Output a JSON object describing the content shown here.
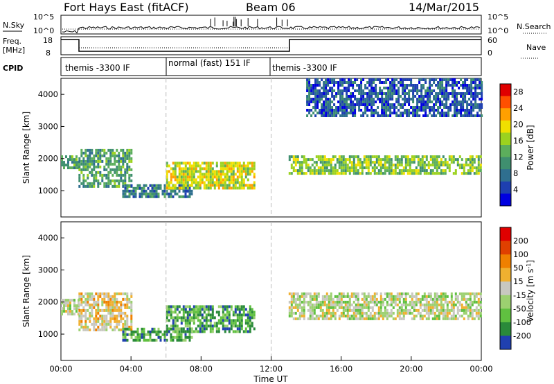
{
  "header": {
    "radar": "Fort Hays East (fitACF)",
    "beam": "Beam 06",
    "date": "14/Mar/2015"
  },
  "panels": {
    "nsky_label": "N.Sky",
    "nsky_ticks": [
      "10^5",
      "10^0"
    ],
    "nsearch_label": "N.Search",
    "nsearch_ticks": [
      "10^5",
      "10^0"
    ],
    "freq_label": "Freq.",
    "freq_unit": "[MHz]",
    "freq_ticks": [
      "18",
      "8"
    ],
    "nave_label": "Nave",
    "nave_ticks": [
      "60",
      "0"
    ],
    "cpid_label": "CPID",
    "cpid_segments": [
      "themis -3300 IF",
      "normal (fast) 151 IF",
      "themis -3300 IF"
    ]
  },
  "chart_data": [
    {
      "type": "heatmap",
      "title": "",
      "xlabel": "",
      "ylabel": "Slant Range [km]",
      "x_ticks": [
        "00:00",
        "04:00",
        "08:00",
        "12:00",
        "16:00",
        "20:00",
        "00:00"
      ],
      "y_ticks": [
        "1000",
        "2000",
        "3000",
        "4000"
      ],
      "xlim": [
        0,
        24
      ],
      "ylim": [
        180,
        4500
      ],
      "colorbar": {
        "label": "Power [dB]",
        "ticks": [
          "4",
          "8",
          "12",
          "16",
          "20",
          "24",
          "28"
        ],
        "range": [
          0,
          30
        ],
        "colors": [
          "#0000e0",
          "#1e3fb0",
          "#2f6f8f",
          "#3f8f6f",
          "#5cae5c",
          "#9cd21f",
          "#f0e000",
          "#ffa000",
          "#ff5000",
          "#e00000"
        ]
      },
      "regions": [
        {
          "name": "echo-A",
          "t": [
            0.0,
            1.0
          ],
          "range": [
            1700,
            2100
          ],
          "value": 14
        },
        {
          "name": "echo-B",
          "t": [
            1.0,
            4.0
          ],
          "range": [
            1100,
            2300
          ],
          "value": 12
        },
        {
          "name": "echo-C",
          "t": [
            3.5,
            7.5
          ],
          "range": [
            800,
            1200
          ],
          "value": 10
        },
        {
          "name": "echo-D",
          "t": [
            6.0,
            11.0
          ],
          "range": [
            1100,
            1900
          ],
          "value": 18
        },
        {
          "name": "echo-E",
          "t": [
            13.0,
            24.0
          ],
          "range": [
            1500,
            2100
          ],
          "value": 16
        },
        {
          "name": "far-echo",
          "t": [
            14.0,
            24.0
          ],
          "range": [
            3300,
            4500
          ],
          "value": 6
        }
      ]
    },
    {
      "type": "heatmap",
      "title": "",
      "xlabel": "Time UT",
      "ylabel": "Slant Range [km]",
      "x_ticks": [
        "00:00",
        "04:00",
        "08:00",
        "12:00",
        "16:00",
        "20:00",
        "00:00"
      ],
      "y_ticks": [
        "1000",
        "2000",
        "3000",
        "4000"
      ],
      "xlim": [
        0,
        24
      ],
      "ylim": [
        180,
        4500
      ],
      "colorbar": {
        "label": "Velocity [m s^-1]",
        "label_main": "Velocity [m s",
        "label_sup": "-1",
        "label_end": "]",
        "ticks": [
          "200",
          "100",
          "50",
          "15",
          "-15",
          "-50",
          "-100",
          "-200"
        ],
        "colors": [
          "#2040b0",
          "#2a8a3a",
          "#60c040",
          "#9cd070",
          "#c8c8c0",
          "#f0b030",
          "#f08000",
          "#e04000",
          "#e00000"
        ]
      },
      "regions": [
        {
          "name": "vel-A",
          "t": [
            0.0,
            1.0
          ],
          "range": [
            1600,
            2100
          ],
          "value": 0
        },
        {
          "name": "vel-B",
          "t": [
            1.0,
            4.0
          ],
          "range": [
            1100,
            2300
          ],
          "value": -20
        },
        {
          "name": "vel-C",
          "t": [
            3.5,
            7.5
          ],
          "range": [
            800,
            1200
          ],
          "value": 60
        },
        {
          "name": "vel-D",
          "t": [
            6.0,
            11.0
          ],
          "range": [
            1100,
            1900
          ],
          "value": 70
        },
        {
          "name": "vel-E",
          "t": [
            13.0,
            24.0
          ],
          "range": [
            1500,
            2300
          ],
          "value": 0
        }
      ]
    }
  ]
}
